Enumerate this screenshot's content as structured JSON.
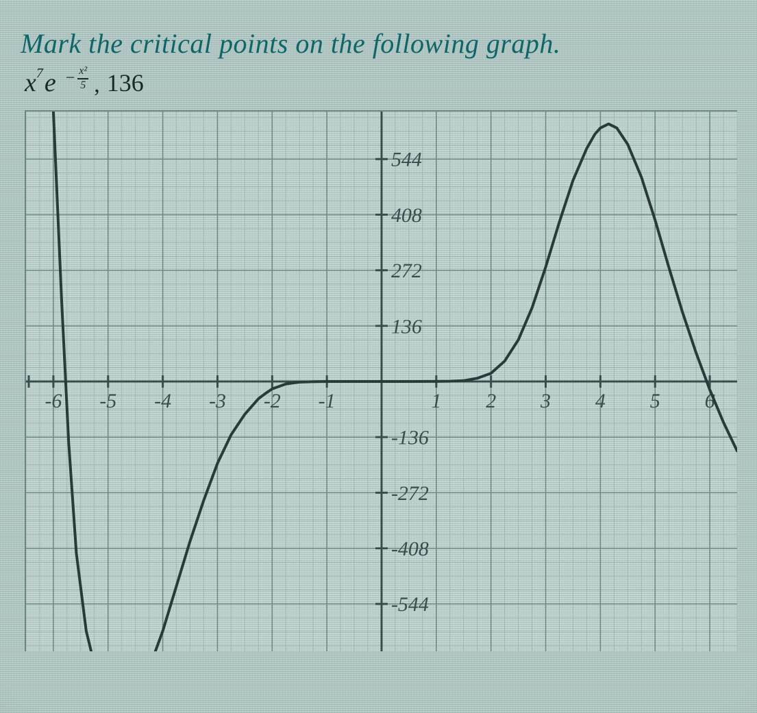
{
  "colors": {
    "page_bg": "#b7cdc9",
    "text_dark": "#1c2a2a",
    "title_teal": "#0f6a6d",
    "plot_bg": "#c3d7d3",
    "minor_grid": "#9cb5b1",
    "major_grid": "#6f8b88",
    "axis": "#39504f",
    "curve": "#2b3c3c",
    "plot_border": "#6f8b88"
  },
  "title": "Mark the critical points on the following graph.",
  "formula": {
    "base_var": "x",
    "base_exp": "7",
    "e_letter": "e",
    "exp_frac_num": "x²",
    "exp_frac_den": "5",
    "comma": ",",
    "constant": "136"
  },
  "chart": {
    "type": "line",
    "xlim": [
      -6.5,
      6.5
    ],
    "ylim": [
      -660,
      660
    ],
    "xticks": [
      -6,
      -5,
      -4,
      -3,
      -2,
      -1,
      1,
      2,
      3,
      4,
      5,
      6
    ],
    "yticks": [
      544,
      408,
      272,
      136,
      -136,
      -272,
      -408,
      -544
    ],
    "ytick_step": 136,
    "minor_x_step": 0.25,
    "minor_y_step": 34,
    "axis_tick_fontsize": 30,
    "axis_tick_fontstyle": "italic",
    "curve_width": 4,
    "curve_points": [
      [
        -6.0,
        660
      ],
      [
        -5.85,
        200
      ],
      [
        -5.72,
        -150
      ],
      [
        -5.58,
        -420
      ],
      [
        -5.4,
        -610
      ],
      [
        -5.2,
        -720
      ],
      [
        -5.0,
        -770
      ],
      [
        -4.8,
        -780
      ],
      [
        -4.6,
        -770
      ],
      [
        -4.4,
        -740
      ],
      [
        -4.25,
        -702
      ],
      [
        -4.0,
        -610
      ],
      [
        -3.75,
        -500
      ],
      [
        -3.5,
        -390
      ],
      [
        -3.25,
        -290
      ],
      [
        -3.0,
        -200
      ],
      [
        -2.75,
        -130
      ],
      [
        -2.5,
        -80
      ],
      [
        -2.25,
        -42
      ],
      [
        -2.1,
        -27
      ],
      [
        -2.0,
        -18
      ],
      [
        -1.75,
        -6
      ],
      [
        -1.5,
        -1.5
      ],
      [
        -1.25,
        -0.3
      ],
      [
        -1.0,
        0
      ],
      [
        -0.5,
        0
      ],
      [
        0.0,
        0
      ],
      [
        0.5,
        0.02
      ],
      [
        1.0,
        0.2
      ],
      [
        1.25,
        0.7
      ],
      [
        1.5,
        2
      ],
      [
        1.75,
        8
      ],
      [
        2.0,
        20
      ],
      [
        2.25,
        50
      ],
      [
        2.5,
        102
      ],
      [
        2.75,
        180
      ],
      [
        3.0,
        280
      ],
      [
        3.25,
        390
      ],
      [
        3.5,
        492
      ],
      [
        3.75,
        570
      ],
      [
        3.9,
        605
      ],
      [
        4.0,
        620
      ],
      [
        4.15,
        630
      ],
      [
        4.3,
        620
      ],
      [
        4.5,
        580
      ],
      [
        4.75,
        500
      ],
      [
        5.0,
        395
      ],
      [
        5.25,
        280
      ],
      [
        5.5,
        170
      ],
      [
        5.75,
        70
      ],
      [
        6.0,
        -20
      ],
      [
        6.25,
        -100
      ],
      [
        6.5,
        -170
      ]
    ]
  }
}
